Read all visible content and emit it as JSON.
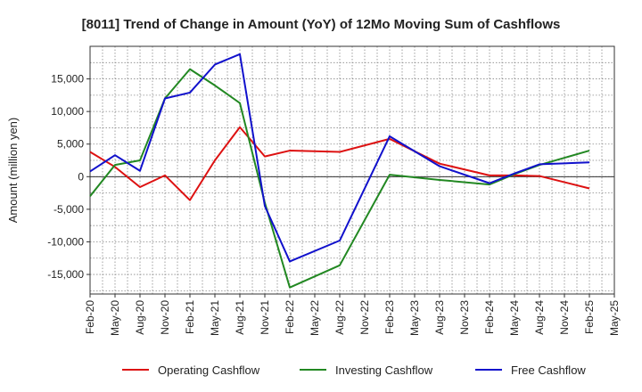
{
  "chart_data": {
    "type": "line",
    "title": "[8011]  Trend of Change in Amount (YoY) of 12Mo Moving Sum of Cashflows",
    "xlabel": "",
    "ylabel": "Amount (million yen)",
    "ylim": [
      -18000,
      20000
    ],
    "yticks": [
      15000,
      10000,
      5000,
      0,
      -5000,
      -10000,
      -15000
    ],
    "ytick_labels": [
      "15,000",
      "10,000",
      "5,000",
      "0",
      "-5,000",
      "-10,000",
      "-15,000"
    ],
    "x_tick_labels": [
      "Feb-20",
      "May-20",
      "Aug-20",
      "Nov-20",
      "Feb-21",
      "May-21",
      "Aug-21",
      "Nov-21",
      "Feb-22",
      "May-22",
      "Aug-22",
      "Nov-22",
      "Feb-23",
      "May-23",
      "Aug-23",
      "Nov-23",
      "Feb-24",
      "May-24",
      "Aug-24",
      "Nov-24",
      "Feb-25",
      "May-25"
    ],
    "grid": true,
    "legend_position": "bottom",
    "series": [
      {
        "name": "Operating Cashflow",
        "color": "#dd1111",
        "points": [
          [
            0,
            3800
          ],
          [
            1,
            1500
          ],
          [
            2,
            -1600
          ],
          [
            3,
            200
          ],
          [
            4,
            -3600
          ],
          [
            5,
            2500
          ],
          [
            6,
            7600
          ],
          [
            7,
            3100
          ],
          [
            8,
            4000
          ],
          [
            10,
            3800
          ],
          [
            12,
            5800
          ],
          [
            14,
            2000
          ],
          [
            16,
            200
          ],
          [
            17,
            200
          ],
          [
            18,
            100
          ],
          [
            20,
            -1800
          ]
        ]
      },
      {
        "name": "Investing Cashflow",
        "color": "#228822",
        "points": [
          [
            0,
            -3000
          ],
          [
            1,
            1800
          ],
          [
            2,
            2500
          ],
          [
            3,
            12000
          ],
          [
            4,
            16500
          ],
          [
            5,
            14000
          ],
          [
            6,
            11300
          ],
          [
            7,
            -4000
          ],
          [
            8,
            -17000
          ],
          [
            10,
            -13600
          ],
          [
            12,
            300
          ],
          [
            14,
            -500
          ],
          [
            16,
            -1200
          ],
          [
            17,
            400
          ],
          [
            18,
            1800
          ],
          [
            20,
            4000
          ]
        ]
      },
      {
        "name": "Free Cashflow",
        "color": "#1111cc",
        "points": [
          [
            0,
            800
          ],
          [
            1,
            3300
          ],
          [
            2,
            900
          ],
          [
            3,
            12000
          ],
          [
            4,
            12900
          ],
          [
            5,
            17200
          ],
          [
            6,
            18800
          ],
          [
            7,
            -4500
          ],
          [
            8,
            -13000
          ],
          [
            10,
            -9800
          ],
          [
            12,
            6200
          ],
          [
            14,
            1600
          ],
          [
            16,
            -1000
          ],
          [
            17,
            500
          ],
          [
            18,
            1900
          ],
          [
            20,
            2200
          ]
        ]
      }
    ]
  }
}
